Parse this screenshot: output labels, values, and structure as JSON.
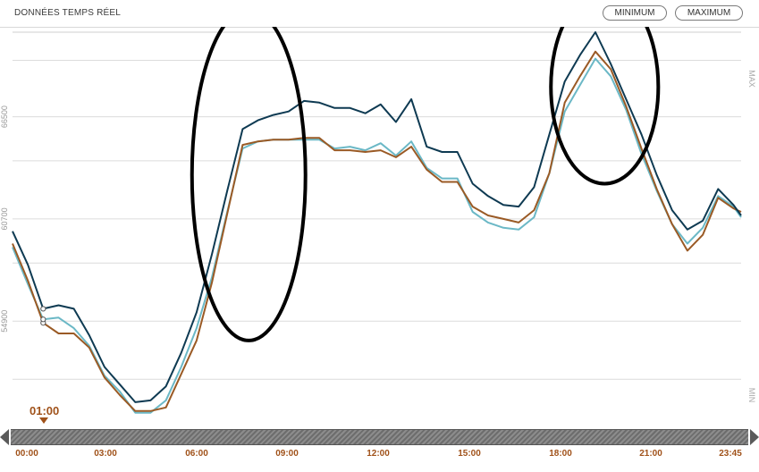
{
  "header": {
    "title": "DONNÉES TEMPS RÉEL",
    "btn_minimum": "MINIMUM",
    "btn_maximum": "MAXIMUM"
  },
  "marker": {
    "label": "01:00"
  },
  "timeline": {
    "ticks": [
      "00:00",
      "03:00",
      "06:00",
      "09:00",
      "12:00",
      "15:00",
      "18:00",
      "21:00",
      "23:45"
    ]
  },
  "colors": {
    "navy": "#0e3a52",
    "brown": "#9a5a25",
    "cyan": "#6bb8c6",
    "grid": "#dcdcdc",
    "accent": "#a0521a"
  },
  "chart_data": {
    "type": "line",
    "yticks": [
      54900,
      60700,
      66500
    ],
    "ylim": [
      50600,
      71300
    ],
    "ylabel_top": "MAX",
    "ylabel_bottom": "MIN",
    "xlim": [
      0,
      23.75
    ],
    "annotations": [
      {
        "type": "ellipse",
        "cx_h": 7.7,
        "cy": 63200,
        "rx_h": 1.85,
        "ry": 9400
      },
      {
        "type": "ellipse",
        "cx_h": 19.3,
        "cy": 68200,
        "rx_h": 1.75,
        "ry": 5500
      }
    ],
    "series": [
      {
        "color": "navy",
        "points": [
          [
            0,
            60000
          ],
          [
            0.5,
            58100
          ],
          [
            1,
            55600
          ],
          [
            1.5,
            55800
          ],
          [
            2,
            55600
          ],
          [
            2.5,
            54100
          ],
          [
            3,
            52300
          ],
          [
            3.5,
            51300
          ],
          [
            4,
            50300
          ],
          [
            4.5,
            50400
          ],
          [
            5,
            51200
          ],
          [
            5.5,
            53100
          ],
          [
            6,
            55400
          ],
          [
            6.5,
            58700
          ],
          [
            7,
            62300
          ],
          [
            7.5,
            65800
          ],
          [
            8,
            66300
          ],
          [
            8.5,
            66600
          ],
          [
            9,
            66800
          ],
          [
            9.5,
            67400
          ],
          [
            10,
            67300
          ],
          [
            10.5,
            67000
          ],
          [
            11,
            67000
          ],
          [
            11.5,
            66700
          ],
          [
            12,
            67200
          ],
          [
            12.5,
            66200
          ],
          [
            13,
            67500
          ],
          [
            13.5,
            64800
          ],
          [
            14,
            64500
          ],
          [
            14.5,
            64500
          ],
          [
            15,
            62700
          ],
          [
            15.5,
            62000
          ],
          [
            16,
            61500
          ],
          [
            16.5,
            61400
          ],
          [
            17,
            62500
          ],
          [
            17.5,
            65500
          ],
          [
            18,
            68500
          ],
          [
            18.5,
            70000
          ],
          [
            19,
            71300
          ],
          [
            19.5,
            69500
          ],
          [
            20,
            67500
          ],
          [
            20.5,
            65500
          ],
          [
            21,
            63200
          ],
          [
            21.5,
            61200
          ],
          [
            22,
            60100
          ],
          [
            22.5,
            60600
          ],
          [
            23,
            62400
          ],
          [
            23.5,
            61500
          ],
          [
            23.75,
            60900
          ]
        ]
      },
      {
        "color": "brown",
        "points": [
          [
            0,
            59300
          ],
          [
            0.5,
            57200
          ],
          [
            1,
            54800
          ],
          [
            1.5,
            54200
          ],
          [
            2,
            54200
          ],
          [
            2.5,
            53400
          ],
          [
            3,
            51700
          ],
          [
            3.5,
            50700
          ],
          [
            4,
            49800
          ],
          [
            4.5,
            49800
          ],
          [
            5,
            50000
          ],
          [
            5.5,
            51900
          ],
          [
            6,
            53800
          ],
          [
            6.5,
            57100
          ],
          [
            7,
            61000
          ],
          [
            7.5,
            64900
          ],
          [
            8,
            65100
          ],
          [
            8.5,
            65200
          ],
          [
            9,
            65200
          ],
          [
            9.5,
            65300
          ],
          [
            10,
            65300
          ],
          [
            10.5,
            64600
          ],
          [
            11,
            64600
          ],
          [
            11.5,
            64500
          ],
          [
            12,
            64600
          ],
          [
            12.5,
            64200
          ],
          [
            13,
            64800
          ],
          [
            13.5,
            63500
          ],
          [
            14,
            62800
          ],
          [
            14.5,
            62800
          ],
          [
            15,
            61400
          ],
          [
            15.5,
            60900
          ],
          [
            16,
            60700
          ],
          [
            16.5,
            60500
          ],
          [
            17,
            61200
          ],
          [
            17.5,
            63300
          ],
          [
            18,
            67300
          ],
          [
            18.5,
            68800
          ],
          [
            19,
            70200
          ],
          [
            19.5,
            69200
          ],
          [
            20,
            67100
          ],
          [
            20.5,
            64700
          ],
          [
            21,
            62400
          ],
          [
            21.5,
            60400
          ],
          [
            22,
            58900
          ],
          [
            22.5,
            59800
          ],
          [
            23,
            61900
          ],
          [
            23.5,
            61300
          ],
          [
            23.75,
            61100
          ]
        ]
      },
      {
        "color": "cyan",
        "points": [
          [
            0,
            59100
          ],
          [
            0.5,
            57000
          ],
          [
            1,
            55000
          ],
          [
            1.5,
            55100
          ],
          [
            2,
            54500
          ],
          [
            2.5,
            53500
          ],
          [
            3,
            51800
          ],
          [
            3.5,
            50900
          ],
          [
            4,
            49700
          ],
          [
            4.5,
            49700
          ],
          [
            5,
            50400
          ],
          [
            5.5,
            52300
          ],
          [
            6,
            54500
          ],
          [
            6.5,
            57400
          ],
          [
            7,
            61100
          ],
          [
            7.5,
            64700
          ],
          [
            8,
            65100
          ],
          [
            8.5,
            65200
          ],
          [
            9,
            65200
          ],
          [
            9.5,
            65200
          ],
          [
            10,
            65200
          ],
          [
            10.5,
            64700
          ],
          [
            11,
            64800
          ],
          [
            11.5,
            64600
          ],
          [
            12,
            65000
          ],
          [
            12.5,
            64300
          ],
          [
            13,
            65100
          ],
          [
            13.5,
            63600
          ],
          [
            14,
            63000
          ],
          [
            14.5,
            63000
          ],
          [
            15,
            61100
          ],
          [
            15.5,
            60500
          ],
          [
            16,
            60200
          ],
          [
            16.5,
            60100
          ],
          [
            17,
            60800
          ],
          [
            17.5,
            63300
          ],
          [
            18,
            66800
          ],
          [
            18.5,
            68300
          ],
          [
            19,
            69800
          ],
          [
            19.5,
            68800
          ],
          [
            20,
            66900
          ],
          [
            20.5,
            64400
          ],
          [
            21,
            62300
          ],
          [
            21.5,
            60400
          ],
          [
            22,
            59300
          ],
          [
            22.5,
            60200
          ],
          [
            23,
            62000
          ],
          [
            23.5,
            61400
          ],
          [
            23.75,
            60800
          ]
        ]
      }
    ]
  }
}
